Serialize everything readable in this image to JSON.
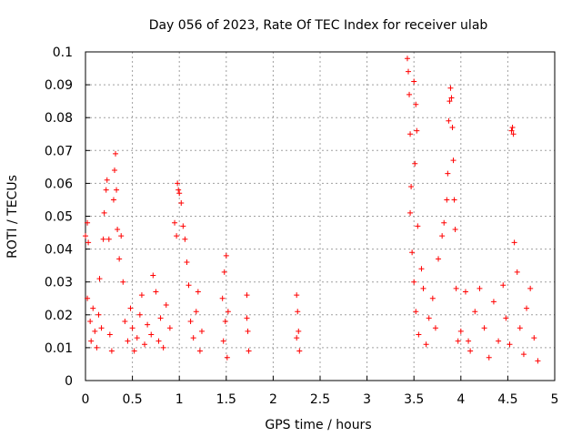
{
  "chart_data": {
    "type": "scatter",
    "title": "Day 056 of 2023, Rate Of TEC Index for receiver ulab",
    "xlabel": "GPS time / hours",
    "ylabel": "ROTI / TECUs",
    "xlim": [
      0,
      5
    ],
    "ylim": [
      0,
      0.1
    ],
    "xticks": [
      "0",
      "0.5",
      "1",
      "1.5",
      "2",
      "2.5",
      "3",
      "3.5",
      "4",
      "4.5",
      "5"
    ],
    "yticks": [
      "0",
      "0.01",
      "0.02",
      "0.03",
      "0.04",
      "0.05",
      "0.06",
      "0.07",
      "0.08",
      "0.09",
      "0.1"
    ],
    "grid": true,
    "series": [
      {
        "name": "ROTI",
        "color": "#ff0000",
        "marker": "plus",
        "points": [
          [
            0.0,
            0.044
          ],
          [
            0.02,
            0.048
          ],
          [
            0.03,
            0.042
          ],
          [
            0.02,
            0.025
          ],
          [
            0.05,
            0.018
          ],
          [
            0.06,
            0.012
          ],
          [
            0.08,
            0.022
          ],
          [
            0.1,
            0.015
          ],
          [
            0.12,
            0.01
          ],
          [
            0.14,
            0.02
          ],
          [
            0.15,
            0.031
          ],
          [
            0.17,
            0.016
          ],
          [
            0.19,
            0.043
          ],
          [
            0.2,
            0.051
          ],
          [
            0.22,
            0.058
          ],
          [
            0.23,
            0.061
          ],
          [
            0.25,
            0.043
          ],
          [
            0.26,
            0.014
          ],
          [
            0.28,
            0.009
          ],
          [
            0.3,
            0.055
          ],
          [
            0.31,
            0.064
          ],
          [
            0.32,
            0.069
          ],
          [
            0.33,
            0.058
          ],
          [
            0.34,
            0.046
          ],
          [
            0.36,
            0.037
          ],
          [
            0.38,
            0.044
          ],
          [
            0.4,
            0.03
          ],
          [
            0.42,
            0.018
          ],
          [
            0.45,
            0.012
          ],
          [
            0.48,
            0.022
          ],
          [
            0.5,
            0.016
          ],
          [
            0.52,
            0.009
          ],
          [
            0.55,
            0.013
          ],
          [
            0.58,
            0.02
          ],
          [
            0.6,
            0.026
          ],
          [
            0.63,
            0.011
          ],
          [
            0.66,
            0.017
          ],
          [
            0.7,
            0.014
          ],
          [
            0.72,
            0.032
          ],
          [
            0.75,
            0.027
          ],
          [
            0.78,
            0.012
          ],
          [
            0.8,
            0.019
          ],
          [
            0.83,
            0.01
          ],
          [
            0.86,
            0.023
          ],
          [
            0.9,
            0.016
          ],
          [
            0.95,
            0.048
          ],
          [
            0.97,
            0.044
          ],
          [
            0.98,
            0.06
          ],
          [
            0.99,
            0.058
          ],
          [
            1.0,
            0.057
          ],
          [
            1.02,
            0.054
          ],
          [
            1.04,
            0.047
          ],
          [
            1.06,
            0.043
          ],
          [
            1.08,
            0.036
          ],
          [
            1.1,
            0.029
          ],
          [
            1.12,
            0.018
          ],
          [
            1.15,
            0.013
          ],
          [
            1.18,
            0.021
          ],
          [
            1.2,
            0.027
          ],
          [
            1.22,
            0.009
          ],
          [
            1.24,
            0.015
          ],
          [
            1.46,
            0.025
          ],
          [
            1.48,
            0.033
          ],
          [
            1.5,
            0.038
          ],
          [
            1.47,
            0.012
          ],
          [
            1.51,
            0.007
          ],
          [
            1.49,
            0.018
          ],
          [
            1.52,
            0.021
          ],
          [
            1.72,
            0.026
          ],
          [
            1.73,
            0.015
          ],
          [
            1.74,
            0.009
          ],
          [
            1.72,
            0.019
          ],
          [
            2.25,
            0.026
          ],
          [
            2.26,
            0.021
          ],
          [
            2.27,
            0.015
          ],
          [
            2.28,
            0.009
          ],
          [
            2.25,
            0.013
          ],
          [
            3.43,
            0.098
          ],
          [
            3.44,
            0.094
          ],
          [
            3.45,
            0.087
          ],
          [
            3.46,
            0.075
          ],
          [
            3.47,
            0.059
          ],
          [
            3.46,
            0.051
          ],
          [
            3.5,
            0.091
          ],
          [
            3.52,
            0.084
          ],
          [
            3.53,
            0.076
          ],
          [
            3.51,
            0.066
          ],
          [
            3.54,
            0.047
          ],
          [
            3.48,
            0.039
          ],
          [
            3.5,
            0.03
          ],
          [
            3.52,
            0.021
          ],
          [
            3.55,
            0.014
          ],
          [
            3.58,
            0.034
          ],
          [
            3.6,
            0.028
          ],
          [
            3.63,
            0.011
          ],
          [
            3.66,
            0.019
          ],
          [
            3.7,
            0.025
          ],
          [
            3.73,
            0.016
          ],
          [
            3.76,
            0.037
          ],
          [
            3.8,
            0.044
          ],
          [
            3.82,
            0.048
          ],
          [
            3.85,
            0.055
          ],
          [
            3.86,
            0.063
          ],
          [
            3.87,
            0.079
          ],
          [
            3.88,
            0.085
          ],
          [
            3.89,
            0.089
          ],
          [
            3.9,
            0.086
          ],
          [
            3.91,
            0.077
          ],
          [
            3.92,
            0.067
          ],
          [
            3.93,
            0.055
          ],
          [
            3.94,
            0.046
          ],
          [
            3.95,
            0.028
          ],
          [
            3.97,
            0.012
          ],
          [
            4.0,
            0.015
          ],
          [
            4.05,
            0.027
          ],
          [
            4.08,
            0.012
          ],
          [
            4.1,
            0.009
          ],
          [
            4.15,
            0.021
          ],
          [
            4.2,
            0.028
          ],
          [
            4.25,
            0.016
          ],
          [
            4.3,
            0.007
          ],
          [
            4.35,
            0.024
          ],
          [
            4.4,
            0.012
          ],
          [
            4.45,
            0.029
          ],
          [
            4.48,
            0.019
          ],
          [
            4.52,
            0.011
          ],
          [
            4.54,
            0.076
          ],
          [
            4.55,
            0.077
          ],
          [
            4.56,
            0.075
          ],
          [
            4.57,
            0.042
          ],
          [
            4.6,
            0.033
          ],
          [
            4.63,
            0.016
          ],
          [
            4.67,
            0.008
          ],
          [
            4.7,
            0.022
          ],
          [
            4.74,
            0.028
          ],
          [
            4.78,
            0.013
          ],
          [
            4.82,
            0.006
          ]
        ]
      }
    ]
  }
}
